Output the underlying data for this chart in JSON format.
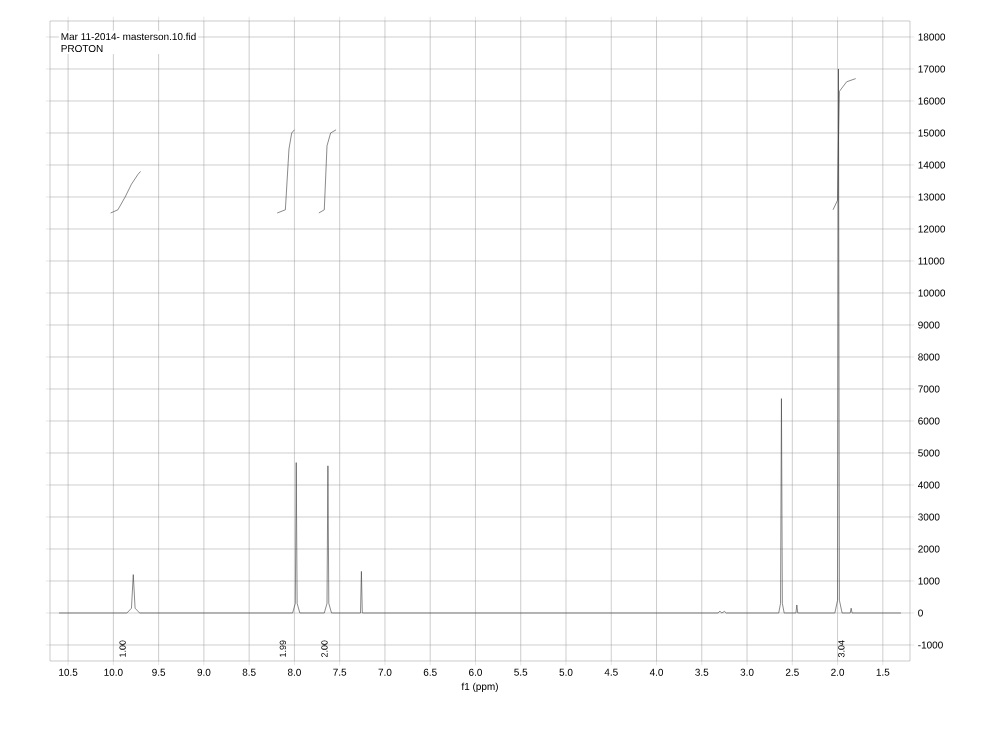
{
  "chart_data": {
    "type": "line",
    "title": "Mar 11-2014- masterson.10.fid",
    "subtitle": "PROTON",
    "xlabel": "f1 (ppm)",
    "xlim": [
      10.7,
      1.2
    ],
    "ylim": [
      -1500,
      18500
    ],
    "xticks": [
      10.5,
      {
        "value": 10,
        "label": "10.0"
      },
      9.5,
      {
        "value": 9,
        "label": "9.0"
      },
      8.5,
      {
        "value": 8,
        "label": "8.0"
      },
      7.5,
      {
        "value": 7,
        "label": "7.0"
      },
      6.5,
      {
        "value": 6,
        "label": "6.0"
      },
      5.5,
      {
        "value": 5,
        "label": "5.0"
      },
      4.5,
      {
        "value": 4,
        "label": "4.0"
      },
      3.5,
      {
        "value": 3,
        "label": "3.0"
      },
      2.5,
      {
        "value": 2,
        "label": "2.0"
      },
      1.5
    ],
    "yticks": [
      -1000,
      0,
      1000,
      2000,
      3000,
      4000,
      5000,
      6000,
      7000,
      8000,
      9000,
      10000,
      11000,
      12000,
      13000,
      14000,
      15000,
      16000,
      17000,
      18000
    ],
    "grid": true,
    "marker": "none",
    "line_style": "solid",
    "series": [
      {
        "color": "#3a3a3a",
        "x": [
          10.6,
          9.85,
          9.8,
          9.78,
          9.76,
          9.71,
          8.02,
          7.99,
          7.98,
          7.97,
          7.94,
          7.67,
          7.64,
          7.63,
          7.62,
          7.59,
          7.27,
          7.26,
          7.25,
          3.32,
          3.3,
          3.28,
          3.25,
          3.23,
          2.65,
          2.63,
          2.62,
          2.61,
          2.59,
          2.46,
          2.45,
          2.44,
          2.03,
          2.0,
          1.99,
          1.98,
          1.95,
          1.86,
          1.85,
          1.84,
          1.3
        ],
        "values": [
          0,
          0,
          150,
          1200,
          150,
          0,
          0,
          300,
          4700,
          300,
          0,
          0,
          300,
          4600,
          300,
          0,
          0,
          1300,
          0,
          0,
          60,
          0,
          50,
          0,
          0,
          300,
          6700,
          300,
          0,
          0,
          250,
          0,
          0,
          400,
          17000,
          400,
          0,
          0,
          150,
          0,
          0
        ]
      },
      {
        "color": "#3a3a3a",
        "x": [
          10.03,
          9.95,
          9.87,
          9.8,
          9.73,
          9.7
        ],
        "values": [
          12500,
          12600,
          13000,
          13400,
          13700,
          13800
        ]
      },
      {
        "color": "#3a3a3a",
        "x": [
          8.19,
          8.1,
          8.06,
          8.03,
          8.0
        ],
        "values": [
          12500,
          12600,
          14500,
          15000,
          15100
        ]
      },
      {
        "color": "#3a3a3a",
        "x": [
          7.73,
          7.67,
          7.64,
          7.6,
          7.54
        ],
        "values": [
          12500,
          12600,
          14600,
          15000,
          15100
        ]
      },
      {
        "color": "#3a3a3a",
        "x": [
          2.05,
          2.0,
          1.99,
          1.98,
          1.9,
          1.8
        ],
        "values": [
          12600,
          12900,
          14800,
          16300,
          16600,
          16700
        ]
      }
    ],
    "annotations": [
      "1.00",
      "1.99",
      "2.00",
      "3.04"
    ]
  }
}
